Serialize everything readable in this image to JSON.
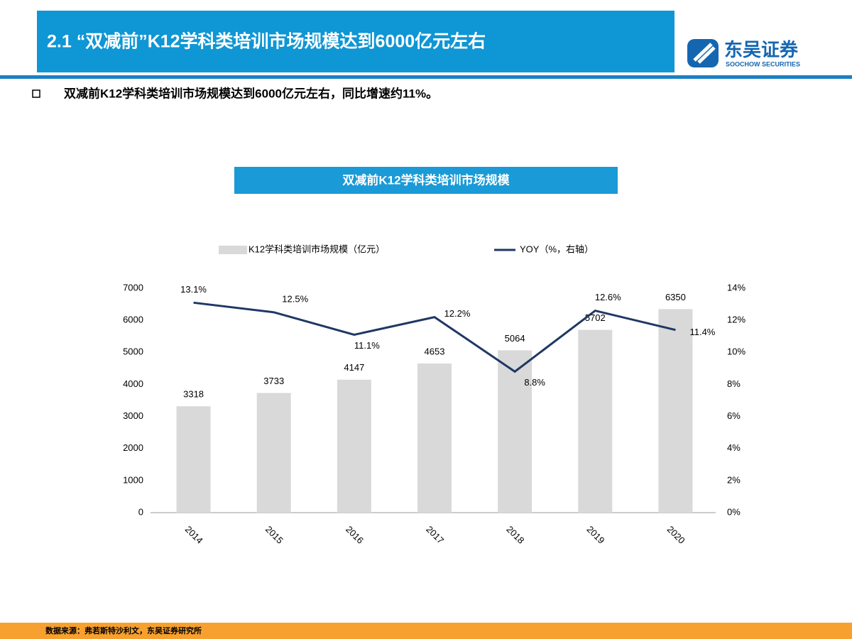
{
  "header": {
    "title": "2.1 “双减前”K12学科类培训市场规模达到6000亿元左右",
    "logo_name": "东吴证券",
    "logo_subtitle": "SOOCHOW SECURITIES"
  },
  "bullet": "双减前K12学科类培训市场规模达到6000亿元左右，同比增速约11%。",
  "source": "数据来源：弗若斯特沙利文，东吴证券研究所",
  "chart_data": {
    "type": "combo",
    "title": "双减前K12学科类培训市场规模",
    "categories": [
      "2014",
      "2015",
      "2016",
      "2017",
      "2018",
      "2019",
      "2020"
    ],
    "series": [
      {
        "name": "K12学科类培训市场规模（亿元）",
        "type": "bar",
        "color": "#d9d9d9",
        "values": [
          3318,
          3733,
          4147,
          4653,
          5064,
          5702,
          6350
        ]
      },
      {
        "name": "YOY（%，右轴）",
        "type": "line",
        "axis": "y2",
        "color": "#1f3864",
        "values": [
          13.1,
          12.5,
          11.1,
          12.2,
          8.8,
          12.6,
          11.4
        ],
        "value_labels": [
          "13.1%",
          "12.5%",
          "11.1%",
          "12.2%",
          "8.8%",
          "12.6%",
          "11.4%"
        ]
      }
    ],
    "ylim": [
      0,
      7000
    ],
    "yticks": [
      0,
      1000,
      2000,
      3000,
      4000,
      5000,
      6000,
      7000
    ],
    "y2lim": [
      0,
      14
    ],
    "y2ticks": [
      {
        "value": 0,
        "label": "0%"
      },
      {
        "value": 2,
        "label": "2%"
      },
      {
        "value": 4,
        "label": "4%"
      },
      {
        "value": 6,
        "label": "6%"
      },
      {
        "value": 8,
        "label": "8%"
      },
      {
        "value": 10,
        "label": "10%"
      },
      {
        "value": 12,
        "label": "12%"
      },
      {
        "value": 14,
        "label": "14%"
      }
    ],
    "grid": false,
    "legend": "top"
  }
}
